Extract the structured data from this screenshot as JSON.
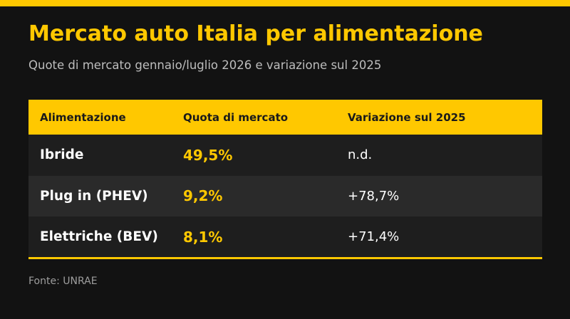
{
  "title": "Mercato auto Italia per alimentazione",
  "subtitle": "Quote di mercato gennaio/luglio 2026 e variazione sul 2025",
  "source": "Fonte: UNRAE",
  "colors": {
    "accent": "#FFC800",
    "background": "#121212",
    "row_odd": "#1E1E1E",
    "row_even": "#2A2A2A"
  },
  "chart_data": {
    "type": "table",
    "title": "Mercato auto Italia per alimentazione",
    "subtitle": "Quote di mercato gennaio/luglio 2026 e variazione sul 2025",
    "columns": [
      "Alimentazione",
      "Quota di mercato",
      "Variazione sul 2025"
    ],
    "rows": [
      [
        "Ibride",
        "49,5%",
        "n.d."
      ],
      [
        "Plug in (PHEV)",
        "9,2%",
        "+78,7%"
      ],
      [
        "Elettriche (BEV)",
        "8,1%",
        "+71,4%"
      ]
    ],
    "source": "Fonte: UNRAE"
  }
}
